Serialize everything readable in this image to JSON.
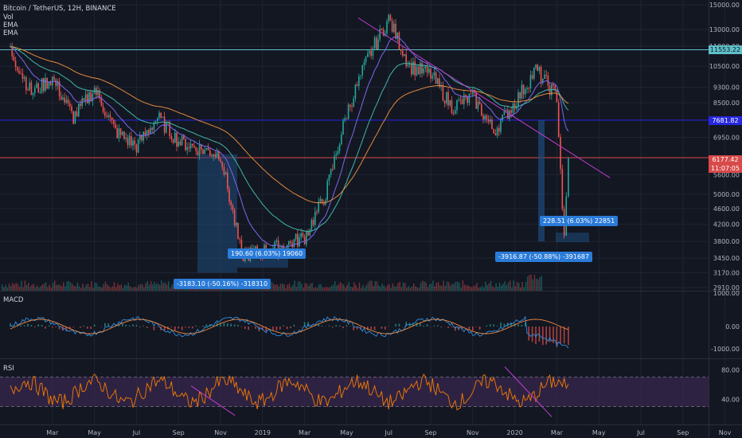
{
  "header": {
    "symbol_title": "Bitcoin / TetherUS, 12H, BINANCE",
    "indicators": [
      "Vol",
      "EMA",
      "EMA"
    ]
  },
  "colors": {
    "bg": "#131722",
    "grid": "#1f2433",
    "up": "#26a69a",
    "down": "#ef5350",
    "trendline": "#c33cd0",
    "resistance_cyan": "#5fc0c8",
    "level_blue": "#2727e0",
    "level_red": "#d84a4a",
    "rsi_band": "#3a2850",
    "measure_fill": "#1f4a7a"
  },
  "price_labels": {
    "resistance": "11553.22",
    "blue_level": "7681.82",
    "current_price": "6177.42",
    "countdown": "11:07:05"
  },
  "measurements": {
    "m1_gain": "190.60 (6.03%) 19060",
    "m1_drop": "-3183.10 (-50.16%) -318310",
    "m2_gain": "228.51 (6.03%) 22851",
    "m2_drop": "-3916.87 (-50.88%) -391687"
  },
  "panes": {
    "macd_label": "MACD",
    "rsi_label": "RSI"
  },
  "chart_data": {
    "type": "line",
    "title": "Bitcoin / TetherUS, 12H, BINANCE",
    "x_ticks": [
      "Mar",
      "May",
      "Jul",
      "Sep",
      "Nov",
      "2019",
      "Mar",
      "May",
      "Jul",
      "Sep",
      "Nov",
      "2020",
      "Mar",
      "May",
      "Jul",
      "Sep",
      "Nov"
    ],
    "price_axis": [
      "15000.00",
      "13000.00",
      "11800.00",
      "10500.00",
      "9300.00",
      "8500.00",
      "6950.00",
      "5600.00",
      "5000.00",
      "4600.00",
      "4200.00",
      "3800.00",
      "3450.00",
      "3170.00",
      "2910.00"
    ],
    "macd_axis": [
      "1000.00",
      "0.00",
      "-1000.00"
    ],
    "rsi_axis": [
      "80.00",
      "40.00"
    ],
    "ylim": [
      2910,
      15000
    ],
    "log_scale": true,
    "grid": true,
    "price_path": [
      {
        "x": "2018-01",
        "y": 11500
      },
      {
        "x": "2018-02",
        "y": 9000
      },
      {
        "x": "2018-03",
        "y": 9800
      },
      {
        "x": "2018-04",
        "y": 7800
      },
      {
        "x": "2018-05",
        "y": 9200
      },
      {
        "x": "2018-06",
        "y": 7200
      },
      {
        "x": "2018-07",
        "y": 6600
      },
      {
        "x": "2018-08",
        "y": 7800
      },
      {
        "x": "2018-09",
        "y": 6800
      },
      {
        "x": "2018-10",
        "y": 6500
      },
      {
        "x": "2018-11",
        "y": 6300
      },
      {
        "x": "2018-12",
        "y": 3500
      },
      {
        "x": "2019-01",
        "y": 3600
      },
      {
        "x": "2019-02",
        "y": 3700
      },
      {
        "x": "2019-03",
        "y": 3900
      },
      {
        "x": "2019-04",
        "y": 5000
      },
      {
        "x": "2019-05",
        "y": 8000
      },
      {
        "x": "2019-06",
        "y": 11000
      },
      {
        "x": "2019-07",
        "y": 13800
      },
      {
        "x": "2019-08",
        "y": 10500
      },
      {
        "x": "2019-09",
        "y": 10000
      },
      {
        "x": "2019-10",
        "y": 8300
      },
      {
        "x": "2019-11",
        "y": 8800
      },
      {
        "x": "2019-12",
        "y": 7200
      },
      {
        "x": "2020-01",
        "y": 8500
      },
      {
        "x": "2020-02",
        "y": 10300
      },
      {
        "x": "2020-03",
        "y": 8800
      },
      {
        "x": "2020-03",
        "y": 3800
      },
      {
        "x": "2020-03",
        "y": 6177
      }
    ]
  }
}
